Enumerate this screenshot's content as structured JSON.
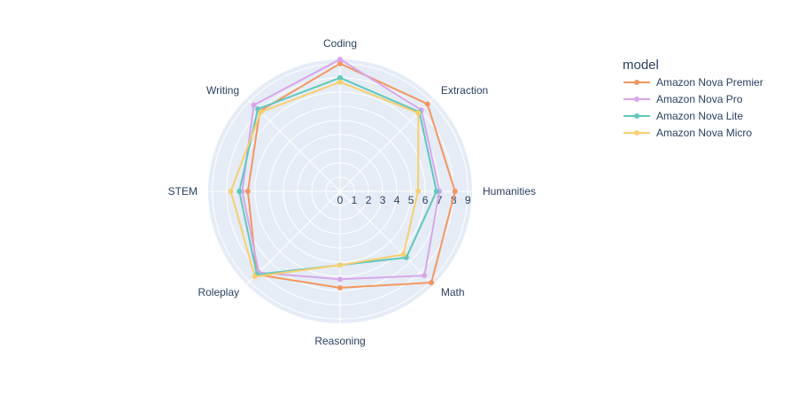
{
  "chart_data": {
    "type": "radar",
    "categories": [
      "Coding",
      "Extraction",
      "Humanities",
      "Math",
      "Reasoning",
      "Roleplay",
      "STEM",
      "Writing"
    ],
    "radial_ticks": [
      "0",
      "1",
      "2",
      "3",
      "4",
      "5",
      "6",
      "7",
      "8",
      "9"
    ],
    "rlim": [
      0,
      9.3
    ],
    "grid": true,
    "legend": {
      "title": "model",
      "placement": "top-right"
    },
    "series": [
      {
        "name": "Amazon Nova Premier",
        "color": "#f4965f",
        "values": [
          9.0,
          8.7,
          8.1,
          9.1,
          6.8,
          8.3,
          6.5,
          8.0
        ]
      },
      {
        "name": "Amazon Nova Pro",
        "color": "#d8a6ea",
        "values": [
          9.3,
          8.1,
          7.0,
          8.4,
          6.2,
          8.1,
          6.9,
          8.6
        ]
      },
      {
        "name": "Amazon Nova Lite",
        "color": "#5fc8bd",
        "values": [
          8.0,
          7.9,
          6.8,
          6.6,
          5.2,
          8.3,
          7.1,
          8.2
        ]
      },
      {
        "name": "Amazon Nova Micro",
        "color": "#f8cf6f",
        "values": [
          7.7,
          7.8,
          5.5,
          6.3,
          5.2,
          8.5,
          7.7,
          7.9
        ]
      }
    ]
  }
}
